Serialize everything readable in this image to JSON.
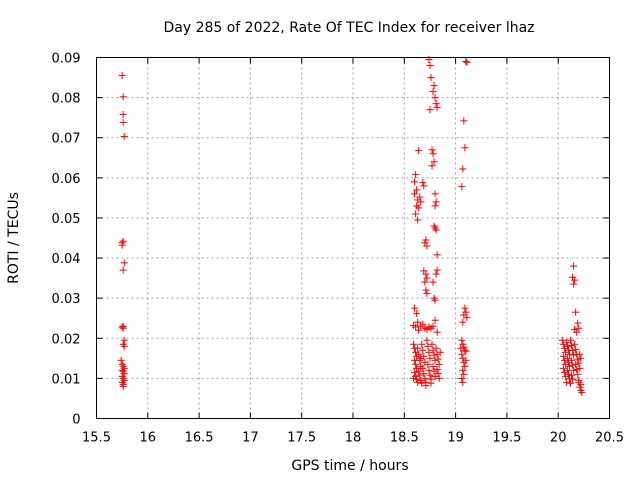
{
  "chart_data": {
    "type": "scatter",
    "title": "Day 285 of 2022, Rate Of TEC Index for receiver lhaz",
    "xlabel": "GPS time / hours",
    "ylabel": "ROTI / TECUs",
    "xlim": [
      15.5,
      20.5
    ],
    "ylim": [
      0,
      0.09
    ],
    "xticks": [
      "15.5",
      "16",
      "16.5",
      "17",
      "17.5",
      "18",
      "18.5",
      "19",
      "19.5",
      "20",
      "20.5"
    ],
    "yticks": [
      "0",
      "0.01",
      "0.02",
      "0.03",
      "0.04",
      "0.05",
      "0.06",
      "0.07",
      "0.08",
      "0.09"
    ],
    "grid": true,
    "marker": "+",
    "color": "#ff0000",
    "series": [
      {
        "points": [
          [
            15.75,
            0.0855
          ],
          [
            15.76,
            0.0802
          ],
          [
            15.76,
            0.0758
          ],
          [
            15.76,
            0.0738
          ],
          [
            15.77,
            0.0703
          ],
          [
            15.75,
            0.0438
          ],
          [
            15.76,
            0.0442
          ],
          [
            15.75,
            0.0432
          ],
          [
            15.77,
            0.0388
          ],
          [
            15.76,
            0.037
          ],
          [
            15.75,
            0.0228
          ],
          [
            15.76,
            0.023
          ],
          [
            15.76,
            0.0225
          ],
          [
            15.77,
            0.0195
          ],
          [
            15.76,
            0.0185
          ],
          [
            15.77,
            0.018
          ],
          [
            15.74,
            0.0145
          ],
          [
            15.75,
            0.0135
          ],
          [
            15.76,
            0.013
          ],
          [
            15.77,
            0.0125
          ],
          [
            15.75,
            0.012
          ],
          [
            15.76,
            0.0118
          ],
          [
            15.77,
            0.0112
          ],
          [
            15.75,
            0.0105
          ],
          [
            15.76,
            0.01
          ],
          [
            15.77,
            0.0095
          ],
          [
            15.75,
            0.009
          ],
          [
            15.76,
            0.0085
          ],
          [
            15.76,
            0.008
          ],
          [
            18.64,
            0.0668
          ],
          [
            18.61,
            0.0608
          ],
          [
            18.6,
            0.059
          ],
          [
            18.62,
            0.057
          ],
          [
            18.6,
            0.056
          ],
          [
            18.65,
            0.0552
          ],
          [
            18.63,
            0.0545
          ],
          [
            18.66,
            0.054
          ],
          [
            18.62,
            0.053
          ],
          [
            18.64,
            0.0525
          ],
          [
            18.61,
            0.051
          ],
          [
            18.63,
            0.0495
          ],
          [
            18.68,
            0.0588
          ],
          [
            18.69,
            0.058
          ],
          [
            18.7,
            0.0438
          ],
          [
            18.71,
            0.0445
          ],
          [
            18.72,
            0.043
          ],
          [
            18.69,
            0.0368
          ],
          [
            18.71,
            0.036
          ],
          [
            18.72,
            0.035
          ],
          [
            18.7,
            0.034
          ],
          [
            18.71,
            0.032
          ],
          [
            18.72,
            0.0312
          ],
          [
            18.75,
            0.088
          ],
          [
            18.74,
            0.0895
          ],
          [
            18.76,
            0.085
          ],
          [
            18.75,
            0.077
          ],
          [
            18.78,
            0.0815
          ],
          [
            18.79,
            0.083
          ],
          [
            18.8,
            0.08
          ],
          [
            18.82,
            0.0775
          ],
          [
            18.81,
            0.0785
          ],
          [
            18.77,
            0.067
          ],
          [
            18.78,
            0.066
          ],
          [
            18.79,
            0.064
          ],
          [
            18.77,
            0.063
          ],
          [
            18.8,
            0.056
          ],
          [
            18.81,
            0.054
          ],
          [
            18.8,
            0.053
          ],
          [
            18.79,
            0.048
          ],
          [
            18.8,
            0.0475
          ],
          [
            18.81,
            0.047
          ],
          [
            18.82,
            0.0408
          ],
          [
            18.82,
            0.037
          ],
          [
            18.81,
            0.036
          ],
          [
            18.78,
            0.034
          ],
          [
            18.79,
            0.03
          ],
          [
            18.8,
            0.0295
          ],
          [
            18.6,
            0.0275
          ],
          [
            18.62,
            0.0262
          ],
          [
            18.63,
            0.024
          ],
          [
            18.59,
            0.0232
          ],
          [
            18.61,
            0.0228
          ],
          [
            18.64,
            0.022
          ],
          [
            18.66,
            0.023
          ],
          [
            18.68,
            0.0235
          ],
          [
            18.7,
            0.0225
          ],
          [
            18.72,
            0.0222
          ],
          [
            18.74,
            0.0228
          ],
          [
            18.76,
            0.0225
          ],
          [
            18.78,
            0.023
          ],
          [
            18.8,
            0.0245
          ],
          [
            18.82,
            0.0215
          ],
          [
            18.59,
            0.0185
          ],
          [
            18.6,
            0.0175
          ],
          [
            18.61,
            0.0165
          ],
          [
            18.62,
            0.0155
          ],
          [
            18.6,
            0.0145
          ],
          [
            18.61,
            0.0135
          ],
          [
            18.62,
            0.0125
          ],
          [
            18.6,
            0.0115
          ],
          [
            18.61,
            0.0105
          ],
          [
            18.62,
            0.0098
          ],
          [
            18.63,
            0.0175
          ],
          [
            18.64,
            0.016
          ],
          [
            18.65,
            0.0145
          ],
          [
            18.66,
            0.013
          ],
          [
            18.64,
            0.0118
          ],
          [
            18.65,
            0.0108
          ],
          [
            18.66,
            0.0095
          ],
          [
            18.67,
            0.0185
          ],
          [
            18.68,
            0.017
          ],
          [
            18.69,
            0.0155
          ],
          [
            18.7,
            0.014
          ],
          [
            18.68,
            0.0125
          ],
          [
            18.69,
            0.0112
          ],
          [
            18.7,
            0.01
          ],
          [
            18.71,
            0.009
          ],
          [
            18.72,
            0.0195
          ],
          [
            18.73,
            0.018
          ],
          [
            18.74,
            0.0165
          ],
          [
            18.75,
            0.015
          ],
          [
            18.73,
            0.0135
          ],
          [
            18.74,
            0.012
          ],
          [
            18.75,
            0.0108
          ],
          [
            18.76,
            0.0098
          ],
          [
            18.77,
            0.0185
          ],
          [
            18.78,
            0.017
          ],
          [
            18.79,
            0.0158
          ],
          [
            18.8,
            0.0145
          ],
          [
            18.78,
            0.013
          ],
          [
            18.79,
            0.0118
          ],
          [
            18.8,
            0.0105
          ],
          [
            18.81,
            0.0175
          ],
          [
            18.82,
            0.016
          ],
          [
            18.83,
            0.0148
          ],
          [
            18.84,
            0.0135
          ],
          [
            18.82,
            0.0122
          ],
          [
            18.83,
            0.0112
          ],
          [
            18.85,
            0.0165
          ],
          [
            18.84,
            0.01
          ],
          [
            18.63,
            0.009
          ],
          [
            18.67,
            0.0088
          ],
          [
            18.71,
            0.0082
          ],
          [
            18.76,
            0.0088
          ],
          [
            18.59,
            0.01
          ],
          [
            18.66,
            0.015
          ],
          [
            19.1,
            0.089
          ],
          [
            19.11,
            0.0888
          ],
          [
            19.08,
            0.0742
          ],
          [
            19.09,
            0.0675
          ],
          [
            19.07,
            0.0622
          ],
          [
            19.06,
            0.0578
          ],
          [
            19.09,
            0.0275
          ],
          [
            19.1,
            0.0265
          ],
          [
            19.08,
            0.0258
          ],
          [
            19.11,
            0.0252
          ],
          [
            19.07,
            0.024
          ],
          [
            19.06,
            0.0195
          ],
          [
            19.07,
            0.0185
          ],
          [
            19.08,
            0.0178
          ],
          [
            19.09,
            0.017
          ],
          [
            19.06,
            0.016
          ],
          [
            19.07,
            0.015
          ],
          [
            19.08,
            0.014
          ],
          [
            19.09,
            0.013
          ],
          [
            19.1,
            0.0168
          ],
          [
            19.05,
            0.0175
          ],
          [
            19.07,
            0.012
          ],
          [
            19.08,
            0.011
          ],
          [
            19.06,
            0.01
          ],
          [
            19.07,
            0.009
          ],
          [
            19.1,
            0.0145
          ],
          [
            20.15,
            0.038
          ],
          [
            20.14,
            0.0352
          ],
          [
            20.16,
            0.0345
          ],
          [
            20.15,
            0.0335
          ],
          [
            20.17,
            0.0265
          ],
          [
            20.16,
            0.0222
          ],
          [
            20.19,
            0.0238
          ],
          [
            20.2,
            0.0225
          ],
          [
            20.18,
            0.0215
          ],
          [
            20.04,
            0.0195
          ],
          [
            20.05,
            0.0185
          ],
          [
            20.06,
            0.0175
          ],
          [
            20.07,
            0.0165
          ],
          [
            20.05,
            0.0155
          ],
          [
            20.06,
            0.0145
          ],
          [
            20.07,
            0.0135
          ],
          [
            20.05,
            0.0125
          ],
          [
            20.06,
            0.0115
          ],
          [
            20.07,
            0.0105
          ],
          [
            20.08,
            0.019
          ],
          [
            20.09,
            0.018
          ],
          [
            20.1,
            0.017
          ],
          [
            20.11,
            0.016
          ],
          [
            20.09,
            0.015
          ],
          [
            20.1,
            0.014
          ],
          [
            20.11,
            0.013
          ],
          [
            20.09,
            0.012
          ],
          [
            20.1,
            0.011
          ],
          [
            20.11,
            0.01
          ],
          [
            20.12,
            0.0195
          ],
          [
            20.13,
            0.0182
          ],
          [
            20.14,
            0.017
          ],
          [
            20.15,
            0.0158
          ],
          [
            20.13,
            0.0145
          ],
          [
            20.14,
            0.0133
          ],
          [
            20.15,
            0.012
          ],
          [
            20.13,
            0.0108
          ],
          [
            20.14,
            0.0098
          ],
          [
            20.16,
            0.0185
          ],
          [
            20.17,
            0.0172
          ],
          [
            20.18,
            0.016
          ],
          [
            20.19,
            0.0148
          ],
          [
            20.17,
            0.0135
          ],
          [
            20.18,
            0.0122
          ],
          [
            20.19,
            0.011
          ],
          [
            20.2,
            0.0095
          ],
          [
            20.21,
            0.016
          ],
          [
            20.22,
            0.015
          ],
          [
            20.2,
            0.0138
          ],
          [
            20.21,
            0.0125
          ],
          [
            20.22,
            0.0085
          ],
          [
            20.21,
            0.0078
          ],
          [
            20.22,
            0.007
          ],
          [
            20.23,
            0.0065
          ],
          [
            20.2,
            0.009
          ],
          [
            20.08,
            0.009
          ],
          [
            20.12,
            0.0088
          ]
        ]
      }
    ]
  }
}
